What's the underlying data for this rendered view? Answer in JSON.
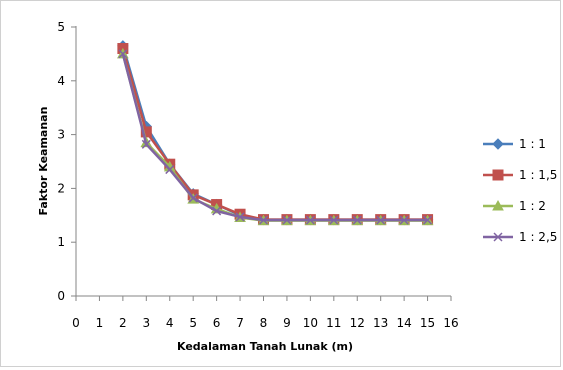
{
  "chart_data": {
    "type": "line",
    "title": "",
    "xlabel": "Kedalaman Tanah Lunak (m)",
    "ylabel": "Faktor Keamanan",
    "xlim": [
      0,
      16
    ],
    "ylim": [
      0,
      5
    ],
    "x_ticks": [
      "0",
      "1",
      "2",
      "3",
      "4",
      "5",
      "6",
      "7",
      "8",
      "9",
      "10",
      "11",
      "12",
      "13",
      "14",
      "15",
      "16"
    ],
    "y_ticks": [
      "0",
      "1",
      "2",
      "3",
      "4",
      "5"
    ],
    "grid": false,
    "legend_position": "right",
    "x": [
      2,
      3,
      4,
      5,
      6,
      7,
      8,
      9,
      10,
      11,
      12,
      13,
      14,
      15
    ],
    "series": [
      {
        "name": "1 : 1",
        "color": "#4a7ebb",
        "marker": "diamond",
        "values": [
          4.65,
          3.15,
          2.45,
          1.9,
          1.7,
          1.5,
          1.42,
          1.42,
          1.42,
          1.42,
          1.42,
          1.42,
          1.42,
          1.42
        ]
      },
      {
        "name": "1 : 1,5",
        "color": "#c0504d",
        "marker": "square",
        "values": [
          4.6,
          3.05,
          2.45,
          1.88,
          1.7,
          1.52,
          1.42,
          1.42,
          1.42,
          1.42,
          1.42,
          1.42,
          1.42,
          1.42
        ]
      },
      {
        "name": "1 : 2",
        "color": "#9bbb59",
        "marker": "triangle",
        "values": [
          4.5,
          2.85,
          2.4,
          1.8,
          1.62,
          1.46,
          1.4,
          1.4,
          1.4,
          1.4,
          1.4,
          1.4,
          1.4,
          1.4
        ]
      },
      {
        "name": "1 : 2,5",
        "color": "#8064a2",
        "marker": "x",
        "values": [
          4.5,
          2.82,
          2.35,
          1.82,
          1.58,
          1.47,
          1.41,
          1.41,
          1.41,
          1.41,
          1.41,
          1.41,
          1.41,
          1.41
        ]
      }
    ]
  }
}
